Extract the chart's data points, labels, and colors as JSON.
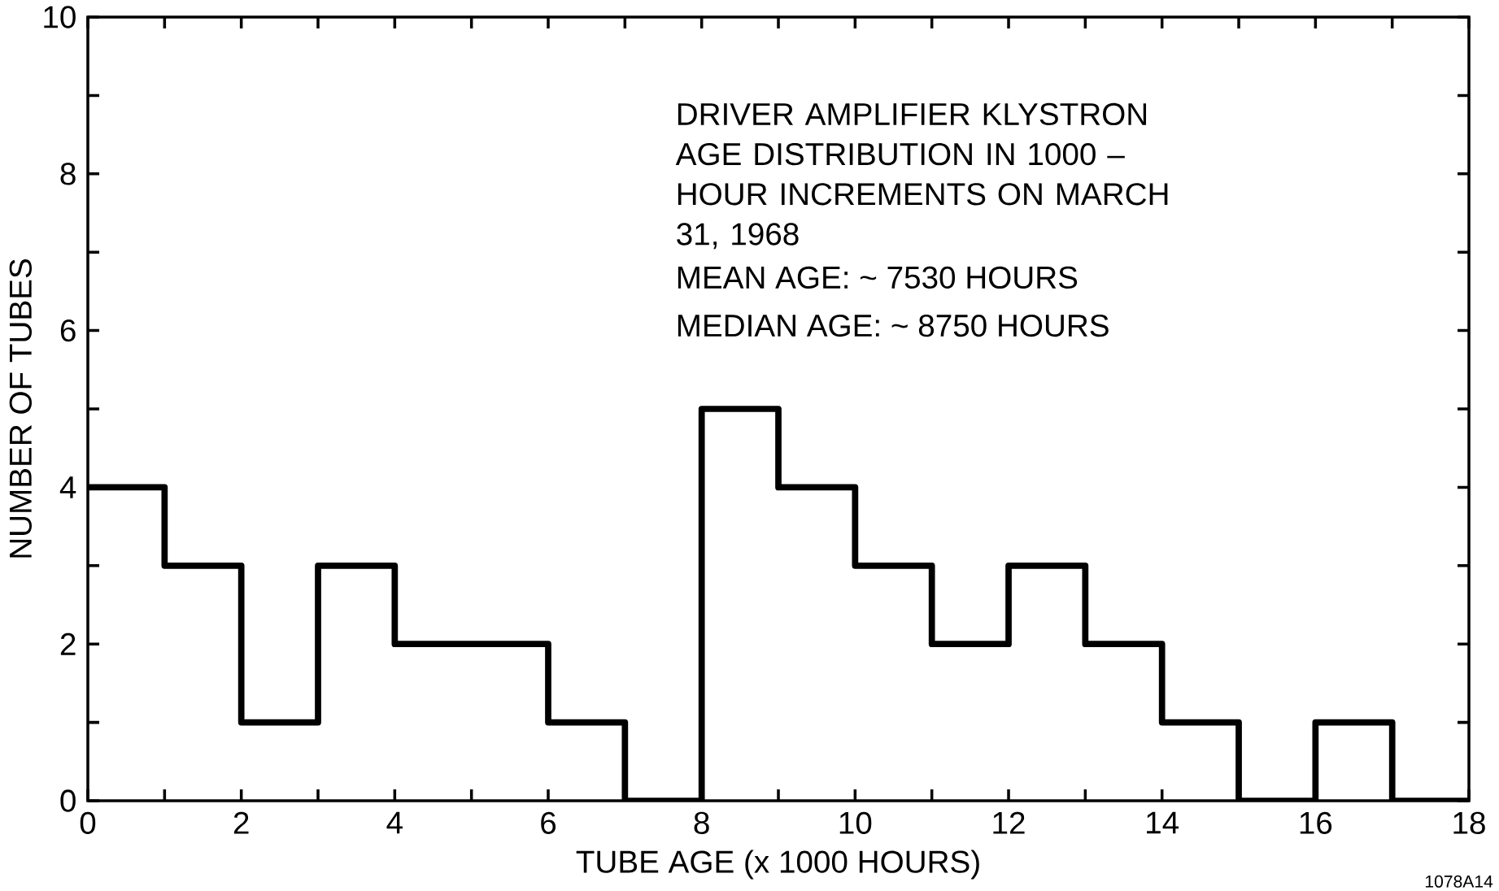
{
  "chart_data": {
    "type": "histogram",
    "title": "DRIVER AMPLIFIER KLYSTRON AGE DISTRIBUTION IN 1000 – HOUR INCREMENTS ON MARCH 31, 1968",
    "xlabel": "TUBE AGE (x 1000 HOURS)",
    "ylabel": "NUMBER OF TUBES",
    "bins": [
      0,
      1,
      2,
      3,
      4,
      5,
      6,
      7,
      8,
      9,
      10,
      11,
      12,
      13,
      14,
      15,
      16,
      17,
      18
    ],
    "values": [
      4,
      3,
      1,
      3,
      2,
      2,
      1,
      0,
      5,
      4,
      3,
      2,
      3,
      2,
      1,
      0,
      1,
      0
    ],
    "color": "#000000",
    "xlim": [
      0,
      18
    ],
    "ylim": [
      0,
      10
    ],
    "xticks": [
      0,
      {
        "value": 1,
        "label": null
      },
      2,
      {
        "value": 3,
        "label": null
      },
      4,
      {
        "value": 5,
        "label": null
      },
      6,
      {
        "value": 7,
        "label": null
      },
      8,
      {
        "value": 9,
        "label": null
      },
      10,
      {
        "value": 11,
        "label": null
      },
      12,
      {
        "value": 13,
        "label": null
      },
      14,
      {
        "value": 15,
        "label": null
      },
      16,
      {
        "value": 17,
        "label": null
      },
      18
    ],
    "yticks": [
      0,
      {
        "value": 1,
        "label": null
      },
      2,
      {
        "value": 3,
        "label": null
      },
      4,
      {
        "value": 5,
        "label": null
      },
      6,
      {
        "value": 7,
        "label": null
      },
      8,
      {
        "value": 9,
        "label": null
      },
      10
    ],
    "annotations": [
      "MEAN AGE: ~ 7530 HOURS",
      "MEDIAN AGE: ~ 8750 HOURS",
      "1078A14"
    ],
    "grid": false
  }
}
